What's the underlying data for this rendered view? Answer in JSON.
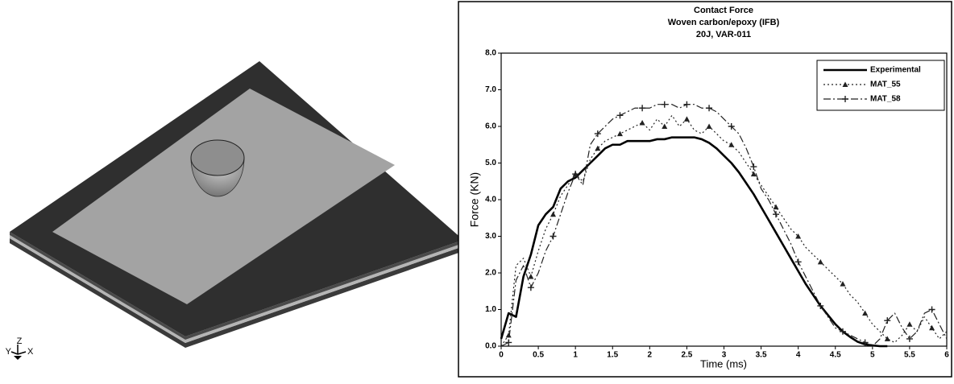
{
  "triad": {
    "y": "Y",
    "z": "Z",
    "x": "X"
  },
  "chart_data": {
    "type": "line",
    "title": [
      "Contact Force",
      "Woven carbon/epoxy (IFB)",
      "20J, VAR-011"
    ],
    "x_label": "Time (ms)",
    "y_label": "Force (KN)",
    "xlim": [
      0,
      6
    ],
    "ylim": [
      0,
      8
    ],
    "xticks": [
      0,
      0.5,
      1,
      1.5,
      2,
      2.5,
      3,
      3.5,
      4,
      4.5,
      5,
      5.5,
      6
    ],
    "yticks": [
      {
        "value": 0,
        "label": "0.0"
      },
      {
        "value": 1,
        "label": "1.0"
      },
      {
        "value": 2,
        "label": "2.0"
      },
      {
        "value": 3,
        "label": "3.0"
      },
      {
        "value": 4,
        "label": "4.0"
      },
      {
        "value": 5,
        "label": "5.0"
      },
      {
        "value": 6,
        "label": "6.0"
      },
      {
        "value": 7,
        "label": "7.0"
      },
      {
        "value": 8,
        "label": "8.0"
      }
    ],
    "legend": "top-right",
    "x": [
      0,
      0.1,
      0.2,
      0.3,
      0.4,
      0.5,
      0.6,
      0.7,
      0.8,
      0.9,
      1,
      1.1,
      1.2,
      1.3,
      1.4,
      1.5,
      1.6,
      1.7,
      1.8,
      1.9,
      2,
      2.1,
      2.2,
      2.3,
      2.4,
      2.5,
      2.6,
      2.7,
      2.8,
      2.9,
      3,
      3.1,
      3.2,
      3.3,
      3.4,
      3.5,
      3.6,
      3.7,
      3.8,
      3.9,
      4,
      4.1,
      4.2,
      4.3,
      4.4,
      4.5,
      4.6,
      4.7,
      4.8,
      4.9,
      5,
      5.1,
      5.2,
      5.3,
      5.4,
      5.5,
      5.6,
      5.7,
      5.8,
      5.9,
      6
    ],
    "series": [
      {
        "name": "Experimental",
        "color": "#000000",
        "dash": "solid",
        "marker": "none",
        "width": 2.6,
        "values": [
          0.2,
          0.9,
          0.8,
          1.9,
          2.5,
          3.3,
          3.6,
          3.8,
          4.3,
          4.5,
          4.6,
          4.8,
          5.0,
          5.2,
          5.4,
          5.5,
          5.5,
          5.6,
          5.6,
          5.6,
          5.6,
          5.65,
          5.65,
          5.7,
          5.7,
          5.7,
          5.7,
          5.65,
          5.55,
          5.4,
          5.2,
          5.0,
          4.75,
          4.45,
          4.15,
          3.8,
          3.45,
          3.1,
          2.75,
          2.4,
          2.05,
          1.7,
          1.4,
          1.1,
          0.85,
          0.6,
          0.4,
          0.25,
          0.12,
          0.05,
          0.02,
          0,
          0,
          null,
          null,
          null,
          null,
          null,
          null,
          null,
          null
        ]
      },
      {
        "name": "MAT_55",
        "color": "#222222",
        "dash": "dotted",
        "marker": "triangle",
        "width": 1.2,
        "values": [
          0,
          0.3,
          2.2,
          2.4,
          1.9,
          2.6,
          3.2,
          3.6,
          4.1,
          4.4,
          4.7,
          4.5,
          5.1,
          5.4,
          5.6,
          5.7,
          5.8,
          5.9,
          6.0,
          6.1,
          5.9,
          6.2,
          6.0,
          6.3,
          6.0,
          6.2,
          5.9,
          5.8,
          6.0,
          5.8,
          5.6,
          5.5,
          5.3,
          5.0,
          4.7,
          4.4,
          4.1,
          3.8,
          3.5,
          3.2,
          3.0,
          2.7,
          2.5,
          2.3,
          2.1,
          1.9,
          1.7,
          1.4,
          1.2,
          0.9,
          0.6,
          0.4,
          0.2,
          0.1,
          0.3,
          0.6,
          0.4,
          0.8,
          0.5,
          0.2,
          0.4
        ]
      },
      {
        "name": "MAT_58",
        "color": "#222222",
        "dash": "dash-dot",
        "marker": "plus",
        "width": 1.2,
        "values": [
          0,
          0.1,
          1.8,
          2.2,
          1.6,
          2.0,
          2.6,
          3.0,
          3.6,
          4.2,
          4.7,
          4.4,
          5.5,
          5.8,
          6.0,
          6.2,
          6.3,
          6.4,
          6.5,
          6.5,
          6.5,
          6.6,
          6.6,
          6.6,
          6.5,
          6.6,
          6.6,
          6.5,
          6.5,
          6.4,
          6.2,
          6.0,
          5.8,
          5.4,
          4.9,
          4.3,
          4.0,
          3.6,
          3.2,
          2.8,
          2.3,
          1.9,
          1.5,
          1.1,
          0.8,
          0.5,
          0.4,
          0.3,
          0.2,
          0.1,
          0,
          0.2,
          0.7,
          0.9,
          0.5,
          0.2,
          0.4,
          0.9,
          1.0,
          0.6,
          0.2
        ]
      }
    ]
  }
}
